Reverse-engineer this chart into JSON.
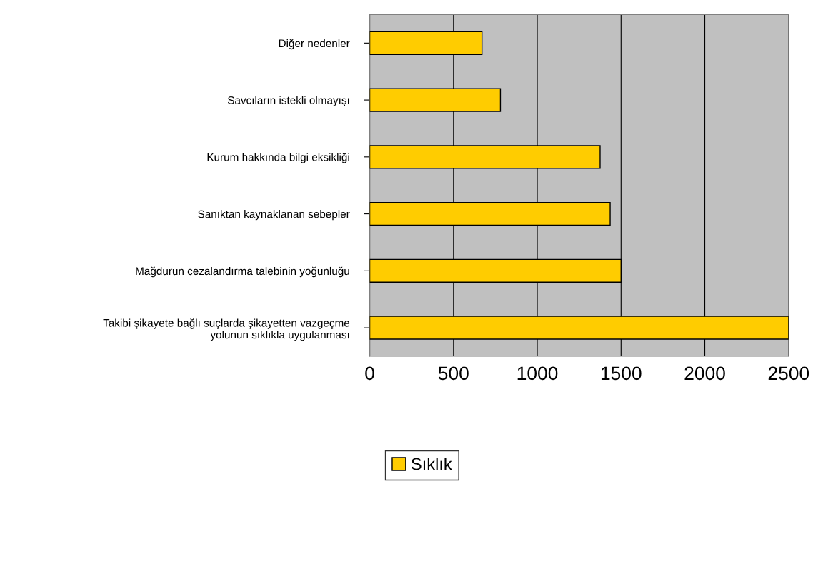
{
  "chart_data": {
    "type": "bar",
    "orientation": "horizontal",
    "categories": [
      "Diğer nedenler",
      "Savcıların istekli olmayışı",
      "Kurum hakkında bilgi eksikliği",
      "Sanıktan kaynaklanan sebepler",
      "Mağdurun cezalandırma talebinin yoğunluğu",
      "Takibi şikayete bağlı suçlarda şikayetten vazgeçme\nyolunun sıklıkla uygulanması"
    ],
    "series": [
      {
        "name": "Sıklık",
        "color": "#ffcc00",
        "values": [
          670,
          780,
          1375,
          1435,
          1500,
          2500
        ]
      }
    ],
    "xlim": [
      0,
      2500
    ],
    "xticks": [
      0,
      500,
      1000,
      1500,
      2000,
      2500
    ],
    "grid": "x",
    "legend": "bottom"
  }
}
